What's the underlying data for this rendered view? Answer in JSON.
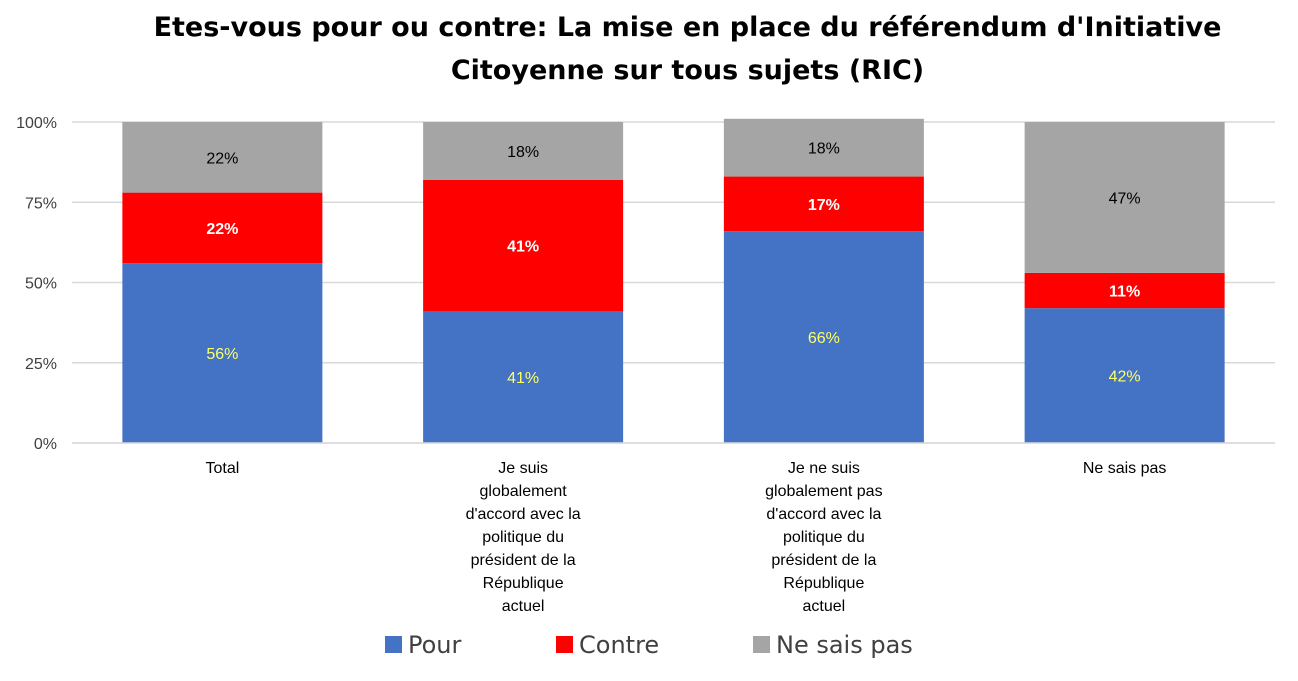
{
  "chart_data": {
    "type": "bar",
    "stacked": true,
    "title_lines": [
      "Etes-vous pour ou contre: La mise en place du référendum d'Initiative",
      "Citoyenne sur tous sujets (RIC)"
    ],
    "categories": [
      [
        "Total"
      ],
      [
        "Je suis",
        "globalement",
        "d'accord avec la",
        "politique du",
        "président de la",
        "République",
        "actuel"
      ],
      [
        "Je ne suis",
        "globalement pas",
        "d'accord avec la",
        "politique du",
        "président de la",
        "République",
        "actuel"
      ],
      [
        "Ne sais pas"
      ]
    ],
    "series": [
      {
        "name": "Pour",
        "color": "#4472C4",
        "label_color": "#FFFF66",
        "label_bold": false,
        "values": [
          56,
          41,
          66,
          42
        ],
        "labels": [
          "56%",
          "41%",
          "66%",
          "42%"
        ]
      },
      {
        "name": "Contre",
        "color": "#FF0000",
        "label_color": "#FFFFFF",
        "label_bold": true,
        "values": [
          22,
          41,
          17,
          11
        ],
        "labels": [
          "22%",
          "41%",
          "17%",
          "11%"
        ]
      },
      {
        "name": "Ne sais pas",
        "color": "#A5A5A5",
        "label_color": "#000000",
        "label_bold": false,
        "values": [
          22,
          18,
          18,
          47
        ],
        "labels": [
          "22%",
          "18%",
          "18%",
          "47%"
        ]
      }
    ],
    "ylim": [
      0,
      100
    ],
    "yticks": [
      0,
      25,
      50,
      75,
      100
    ],
    "ytick_labels": [
      "0%",
      "25%",
      "50%",
      "75%",
      "100%"
    ],
    "grid": true,
    "legend": "bottom"
  }
}
